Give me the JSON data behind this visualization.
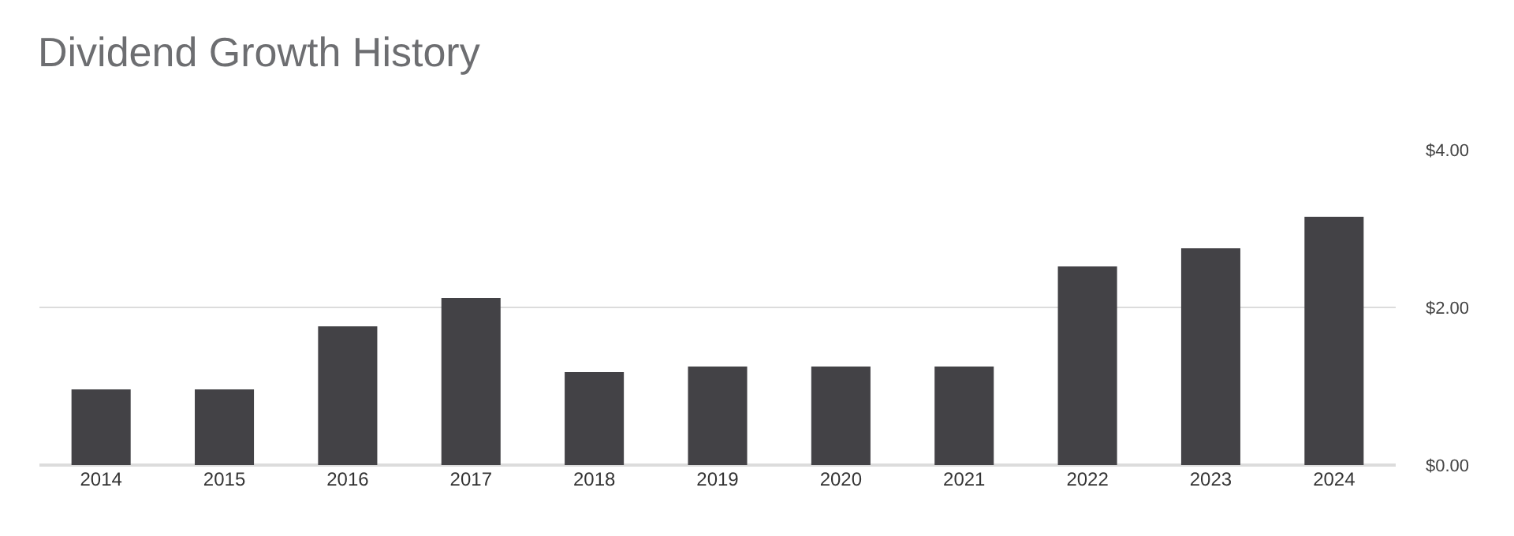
{
  "chart_data": {
    "type": "bar",
    "title": "Dividend Growth History",
    "categories": [
      "2014",
      "2015",
      "2016",
      "2017",
      "2018",
      "2019",
      "2020",
      "2021",
      "2022",
      "2023",
      "2024"
    ],
    "values": [
      0.96,
      0.96,
      1.76,
      2.12,
      1.18,
      1.25,
      1.25,
      1.25,
      2.52,
      2.75,
      3.15
    ],
    "color": "#434246",
    "ylim": [
      0,
      4
    ],
    "yticks": [
      {
        "value": 0,
        "label": "$0.00"
      },
      {
        "value": 2,
        "label": "$2.00"
      },
      {
        "value": 4,
        "label": "$4.00"
      }
    ],
    "grid": "y"
  }
}
